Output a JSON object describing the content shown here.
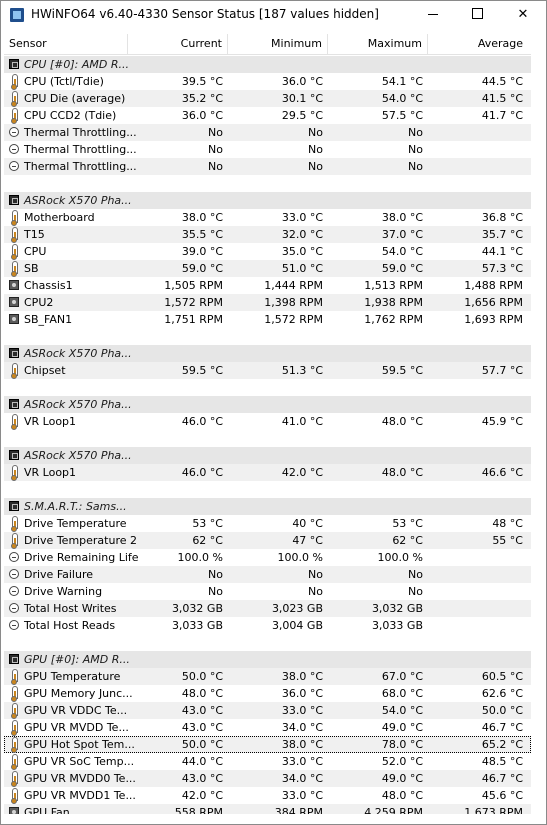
{
  "window": {
    "title": "HWiNFO64 v6.40-4330 Sensor Status [187 values hidden]",
    "minimize_glyph": "",
    "close_glyph": "✕"
  },
  "columns": {
    "sensor": "Sensor",
    "current": "Current",
    "minimum": "Minimum",
    "maximum": "Maximum",
    "average": "Average"
  },
  "rows": [
    {
      "kind": "group",
      "icon": "chip",
      "label": "CPU [#0]: AMD R...",
      "cur": "",
      "min": "",
      "max": "",
      "avg": ""
    },
    {
      "kind": "item",
      "icon": "thermo",
      "label": "CPU (Tctl/Tdie)",
      "cur": "39.5 °C",
      "min": "36.0 °C",
      "max": "54.1 °C",
      "avg": "44.5 °C"
    },
    {
      "kind": "item",
      "icon": "thermo",
      "label": "CPU Die (average)",
      "cur": "35.2 °C",
      "min": "30.1 °C",
      "max": "54.0 °C",
      "avg": "41.5 °C"
    },
    {
      "kind": "item",
      "icon": "thermo",
      "label": "CPU CCD2 (Tdie)",
      "cur": "36.0 °C",
      "min": "29.5 °C",
      "max": "57.5 °C",
      "avg": "41.7 °C"
    },
    {
      "kind": "item",
      "icon": "flag",
      "label": "Thermal Throttling...",
      "cur": "No",
      "min": "No",
      "max": "No",
      "avg": ""
    },
    {
      "kind": "item",
      "icon": "flag",
      "label": "Thermal Throttling...",
      "cur": "No",
      "min": "No",
      "max": "No",
      "avg": ""
    },
    {
      "kind": "item",
      "icon": "flag",
      "label": "Thermal Throttling...",
      "cur": "No",
      "min": "No",
      "max": "No",
      "avg": ""
    },
    {
      "kind": "spacer"
    },
    {
      "kind": "group",
      "icon": "chip",
      "label": "ASRock X570 Pha...",
      "cur": "",
      "min": "",
      "max": "",
      "avg": ""
    },
    {
      "kind": "item",
      "icon": "thermo",
      "label": "Motherboard",
      "cur": "38.0 °C",
      "min": "33.0 °C",
      "max": "38.0 °C",
      "avg": "36.8 °C"
    },
    {
      "kind": "item",
      "icon": "thermo",
      "label": "T15",
      "cur": "35.5 °C",
      "min": "32.0 °C",
      "max": "37.0 °C",
      "avg": "35.7 °C"
    },
    {
      "kind": "item",
      "icon": "thermo",
      "label": "CPU",
      "cur": "39.0 °C",
      "min": "35.0 °C",
      "max": "54.0 °C",
      "avg": "44.1 °C"
    },
    {
      "kind": "item",
      "icon": "thermo",
      "label": "SB",
      "cur": "59.0 °C",
      "min": "51.0 °C",
      "max": "59.0 °C",
      "avg": "57.3 °C"
    },
    {
      "kind": "item",
      "icon": "fan",
      "label": "Chassis1",
      "cur": "1,505 RPM",
      "min": "1,444 RPM",
      "max": "1,513 RPM",
      "avg": "1,488 RPM"
    },
    {
      "kind": "item",
      "icon": "fan",
      "label": "CPU2",
      "cur": "1,572 RPM",
      "min": "1,398 RPM",
      "max": "1,938 RPM",
      "avg": "1,656 RPM"
    },
    {
      "kind": "item",
      "icon": "fan",
      "label": "SB_FAN1",
      "cur": "1,751 RPM",
      "min": "1,572 RPM",
      "max": "1,762 RPM",
      "avg": "1,693 RPM"
    },
    {
      "kind": "spacer"
    },
    {
      "kind": "group",
      "icon": "chip",
      "label": "ASRock X570 Pha...",
      "cur": "",
      "min": "",
      "max": "",
      "avg": ""
    },
    {
      "kind": "item",
      "icon": "thermo",
      "label": "Chipset",
      "cur": "59.5 °C",
      "min": "51.3 °C",
      "max": "59.5 °C",
      "avg": "57.7 °C"
    },
    {
      "kind": "spacer"
    },
    {
      "kind": "group",
      "icon": "chip",
      "label": "ASRock X570 Pha...",
      "cur": "",
      "min": "",
      "max": "",
      "avg": ""
    },
    {
      "kind": "item",
      "icon": "thermo",
      "label": "VR Loop1",
      "cur": "46.0 °C",
      "min": "41.0 °C",
      "max": "48.0 °C",
      "avg": "45.9 °C"
    },
    {
      "kind": "spacer"
    },
    {
      "kind": "group",
      "icon": "chip",
      "label": "ASRock X570 Pha...",
      "cur": "",
      "min": "",
      "max": "",
      "avg": ""
    },
    {
      "kind": "item",
      "icon": "thermo",
      "label": "VR Loop1",
      "cur": "46.0 °C",
      "min": "42.0 °C",
      "max": "48.0 °C",
      "avg": "46.6 °C"
    },
    {
      "kind": "spacer"
    },
    {
      "kind": "group",
      "icon": "chip",
      "label": "S.M.A.R.T.: Sams...",
      "cur": "",
      "min": "",
      "max": "",
      "avg": ""
    },
    {
      "kind": "item",
      "icon": "thermo",
      "label": "Drive Temperature",
      "cur": "53 °C",
      "min": "40 °C",
      "max": "53 °C",
      "avg": "48 °C"
    },
    {
      "kind": "item",
      "icon": "thermo",
      "label": "Drive Temperature 2",
      "cur": "62 °C",
      "min": "47 °C",
      "max": "62 °C",
      "avg": "55 °C"
    },
    {
      "kind": "item",
      "icon": "flag",
      "label": "Drive Remaining Life",
      "cur": "100.0 %",
      "min": "100.0 %",
      "max": "100.0 %",
      "avg": ""
    },
    {
      "kind": "item",
      "icon": "flag",
      "label": "Drive Failure",
      "cur": "No",
      "min": "No",
      "max": "No",
      "avg": ""
    },
    {
      "kind": "item",
      "icon": "flag",
      "label": "Drive Warning",
      "cur": "No",
      "min": "No",
      "max": "No",
      "avg": ""
    },
    {
      "kind": "item",
      "icon": "flag",
      "label": "Total Host Writes",
      "cur": "3,032 GB",
      "min": "3,023 GB",
      "max": "3,032 GB",
      "avg": ""
    },
    {
      "kind": "item",
      "icon": "flag",
      "label": "Total Host Reads",
      "cur": "3,033 GB",
      "min": "3,004 GB",
      "max": "3,033 GB",
      "avg": ""
    },
    {
      "kind": "spacer"
    },
    {
      "kind": "group",
      "icon": "chip",
      "label": "GPU [#0]: AMD R...",
      "cur": "",
      "min": "",
      "max": "",
      "avg": ""
    },
    {
      "kind": "item",
      "icon": "thermo",
      "label": "GPU Temperature",
      "cur": "50.0 °C",
      "min": "38.0 °C",
      "max": "67.0 °C",
      "avg": "60.5 °C"
    },
    {
      "kind": "item",
      "icon": "thermo",
      "label": "GPU Memory Junc...",
      "cur": "48.0 °C",
      "min": "36.0 °C",
      "max": "68.0 °C",
      "avg": "62.6 °C"
    },
    {
      "kind": "item",
      "icon": "thermo",
      "label": "GPU VR VDDC Te...",
      "cur": "43.0 °C",
      "min": "33.0 °C",
      "max": "54.0 °C",
      "avg": "50.0 °C"
    },
    {
      "kind": "item",
      "icon": "thermo",
      "label": "GPU VR MVDD Te...",
      "cur": "43.0 °C",
      "min": "34.0 °C",
      "max": "49.0 °C",
      "avg": "46.7 °C"
    },
    {
      "kind": "item",
      "icon": "thermo",
      "label": "GPU Hot Spot Tem...",
      "cur": "50.0 °C",
      "min": "38.0 °C",
      "max": "78.0 °C",
      "avg": "65.2 °C",
      "focused": true
    },
    {
      "kind": "item",
      "icon": "thermo",
      "label": "GPU VR SoC Temp...",
      "cur": "44.0 °C",
      "min": "33.0 °C",
      "max": "52.0 °C",
      "avg": "48.5 °C"
    },
    {
      "kind": "item",
      "icon": "thermo",
      "label": "GPU VR MVDD0 Te...",
      "cur": "43.0 °C",
      "min": "34.0 °C",
      "max": "49.0 °C",
      "avg": "46.7 °C"
    },
    {
      "kind": "item",
      "icon": "thermo",
      "label": "GPU VR MVDD1 Te...",
      "cur": "42.0 °C",
      "min": "33.0 °C",
      "max": "48.0 °C",
      "avg": "45.6 °C"
    },
    {
      "kind": "item",
      "icon": "fan",
      "label": "GPU Fan",
      "cur": "558 RPM",
      "min": "384 RPM",
      "max": "4,259 RPM",
      "avg": "1,673 RPM"
    }
  ]
}
